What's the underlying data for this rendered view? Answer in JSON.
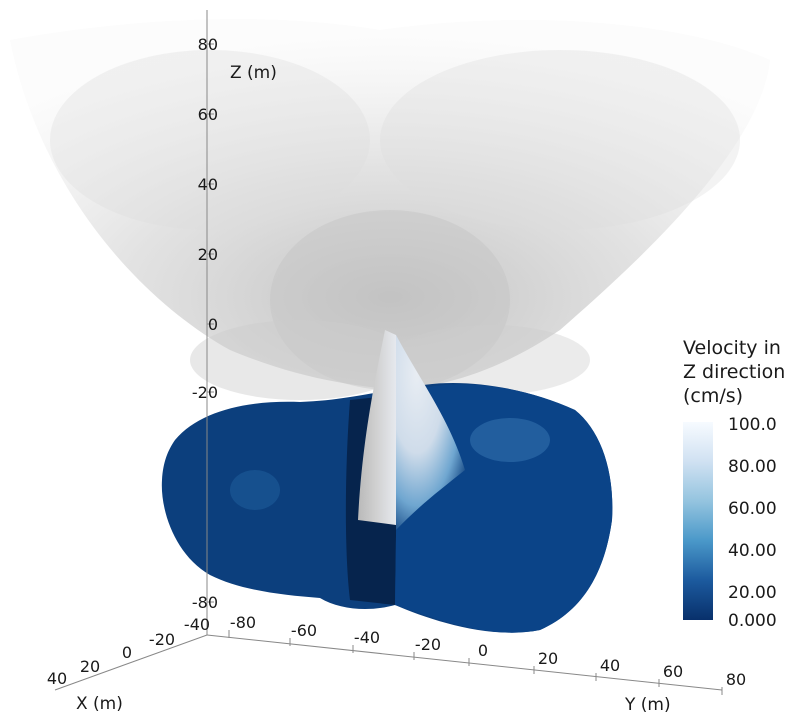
{
  "chart_data": {
    "type": "3d-rendering",
    "axes": {
      "z": {
        "label": "Z (m)",
        "ticks": [
          "80",
          "60",
          "40",
          "20",
          "0",
          "-20",
          "-80"
        ]
      },
      "x": {
        "label": "X (m)",
        "ticks": [
          "40",
          "20",
          "0",
          "-20",
          "-40"
        ]
      },
      "y": {
        "label": "Y (m)",
        "ticks": [
          "-80",
          "-60",
          "-40",
          "-20",
          "0",
          "20",
          "40",
          "60",
          "80"
        ]
      }
    },
    "colorbar": {
      "title": [
        "Velocity in",
        "Z direction",
        "(cm/s)"
      ],
      "range": [
        0,
        100
      ],
      "ticks": [
        "100.0",
        "80.00",
        "60.00",
        "40.00",
        "20.00",
        "0.000"
      ],
      "colors": {
        "low": "#08306b",
        "mid": "#4a98c9",
        "high": "#f7fbff"
      }
    }
  }
}
